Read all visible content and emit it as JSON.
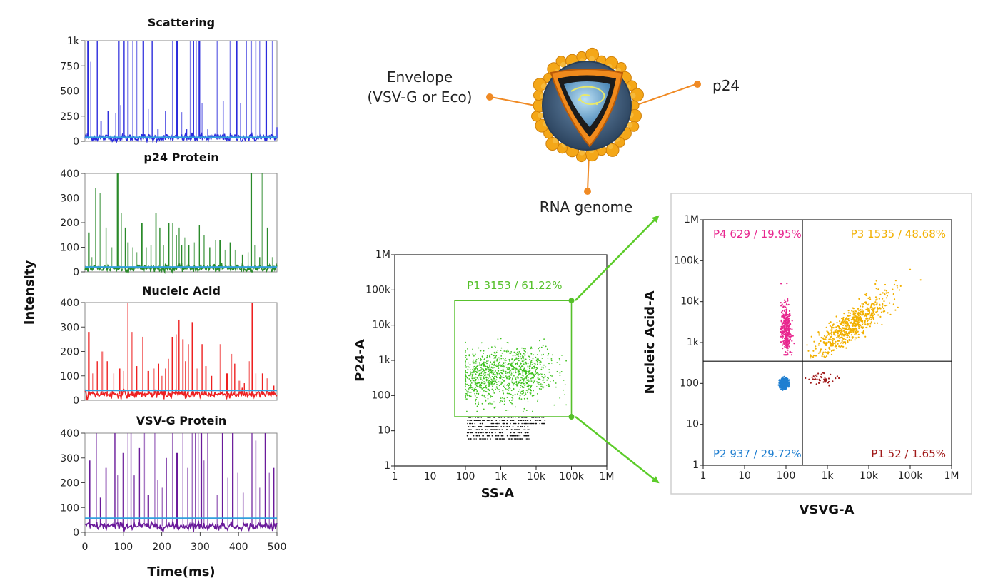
{
  "left_panel": {
    "y_axis_label": "Intensity",
    "x_axis_label": "Time(ms)",
    "x_ticks": [
      "0",
      "100",
      "200",
      "300",
      "400",
      "500"
    ]
  },
  "chart_data": [
    {
      "type": "line",
      "title": "Scattering",
      "xlabel": "Time(ms)",
      "ylabel": "Intensity",
      "xlim": [
        0,
        500
      ],
      "ylim": [
        0,
        1000
      ],
      "y_ticks": [
        "0",
        "250",
        "500",
        "750",
        "1k"
      ],
      "color": "#2b2bdc",
      "baseline": 35,
      "threshold": 40,
      "threshold_color": "#33a0dd",
      "spikes": [
        [
          8,
          1000
        ],
        [
          15,
          790
        ],
        [
          32,
          1000
        ],
        [
          42,
          200
        ],
        [
          60,
          300
        ],
        [
          80,
          280
        ],
        [
          88,
          1000
        ],
        [
          93,
          360
        ],
        [
          102,
          1000
        ],
        [
          112,
          1000
        ],
        [
          125,
          1000
        ],
        [
          135,
          1000
        ],
        [
          152,
          1000
        ],
        [
          165,
          320
        ],
        [
          175,
          1000
        ],
        [
          190,
          120
        ],
        [
          210,
          300
        ],
        [
          228,
          1000
        ],
        [
          240,
          1000
        ],
        [
          252,
          290
        ],
        [
          265,
          120
        ],
        [
          275,
          1000
        ],
        [
          283,
          1000
        ],
        [
          290,
          1000
        ],
        [
          298,
          1000
        ],
        [
          305,
          380
        ],
        [
          320,
          120
        ],
        [
          345,
          1000
        ],
        [
          360,
          400
        ],
        [
          378,
          1000
        ],
        [
          395,
          1000
        ],
        [
          405,
          380
        ],
        [
          420,
          1000
        ],
        [
          433,
          1000
        ],
        [
          445,
          1000
        ],
        [
          455,
          1000
        ],
        [
          472,
          1000
        ],
        [
          488,
          1000
        ],
        [
          500,
          140
        ]
      ]
    },
    {
      "type": "line",
      "title": "p24 Protein",
      "xlabel": "Time(ms)",
      "ylabel": "Intensity",
      "xlim": [
        0,
        500
      ],
      "ylim": [
        0,
        400
      ],
      "y_ticks": [
        "0",
        "100",
        "200",
        "300",
        "400"
      ],
      "color": "#2a8a2a",
      "baseline": 15,
      "threshold": 20,
      "threshold_color": "#33a0dd",
      "spikes": [
        [
          10,
          160
        ],
        [
          18,
          60
        ],
        [
          28,
          340
        ],
        [
          40,
          320
        ],
        [
          55,
          180
        ],
        [
          70,
          100
        ],
        [
          85,
          400
        ],
        [
          95,
          240
        ],
        [
          105,
          180
        ],
        [
          112,
          120
        ],
        [
          125,
          100
        ],
        [
          135,
          80
        ],
        [
          148,
          200
        ],
        [
          160,
          100
        ],
        [
          172,
          110
        ],
        [
          185,
          240
        ],
        [
          195,
          180
        ],
        [
          205,
          110
        ],
        [
          218,
          200
        ],
        [
          228,
          200
        ],
        [
          238,
          150
        ],
        [
          245,
          180
        ],
        [
          252,
          110
        ],
        [
          260,
          140
        ],
        [
          270,
          110
        ],
        [
          285,
          120
        ],
        [
          298,
          190
        ],
        [
          310,
          150
        ],
        [
          325,
          100
        ],
        [
          340,
          130
        ],
        [
          352,
          130
        ],
        [
          365,
          90
        ],
        [
          378,
          120
        ],
        [
          392,
          90
        ],
        [
          410,
          70
        ],
        [
          425,
          80
        ],
        [
          433,
          400
        ],
        [
          442,
          110
        ],
        [
          455,
          60
        ],
        [
          462,
          400
        ],
        [
          475,
          180
        ],
        [
          488,
          60
        ]
      ]
    },
    {
      "type": "line",
      "title": "Nucleic Acid",
      "xlabel": "Time(ms)",
      "ylabel": "Intensity",
      "xlim": [
        0,
        500
      ],
      "ylim": [
        0,
        400
      ],
      "y_ticks": [
        "0",
        "100",
        "200",
        "300",
        "400"
      ],
      "color": "#ee2020",
      "baseline": 25,
      "threshold": 40,
      "threshold_color": "#33a0dd",
      "spikes": [
        [
          10,
          280
        ],
        [
          20,
          110
        ],
        [
          32,
          160
        ],
        [
          45,
          200
        ],
        [
          58,
          160
        ],
        [
          75,
          110
        ],
        [
          90,
          130
        ],
        [
          100,
          120
        ],
        [
          112,
          400
        ],
        [
          122,
          280
        ],
        [
          135,
          140
        ],
        [
          150,
          260
        ],
        [
          165,
          120
        ],
        [
          180,
          130
        ],
        [
          192,
          150
        ],
        [
          200,
          100
        ],
        [
          210,
          130
        ],
        [
          218,
          170
        ],
        [
          228,
          260
        ],
        [
          238,
          270
        ],
        [
          245,
          330
        ],
        [
          255,
          250
        ],
        [
          262,
          160
        ],
        [
          270,
          230
        ],
        [
          280,
          320
        ],
        [
          292,
          130
        ],
        [
          305,
          230
        ],
        [
          315,
          140
        ],
        [
          330,
          100
        ],
        [
          352,
          230
        ],
        [
          370,
          110
        ],
        [
          382,
          190
        ],
        [
          390,
          150
        ],
        [
          402,
          80
        ],
        [
          415,
          70
        ],
        [
          428,
          160
        ],
        [
          436,
          400
        ],
        [
          445,
          110
        ],
        [
          462,
          110
        ],
        [
          475,
          90
        ],
        [
          492,
          60
        ]
      ]
    },
    {
      "type": "line",
      "title": "VSV-G Protein",
      "xlabel": "Time(ms)",
      "ylabel": "Intensity",
      "xlim": [
        0,
        500
      ],
      "ylim": [
        0,
        400
      ],
      "y_ticks": [
        "0",
        "100",
        "200",
        "300",
        "400"
      ],
      "color": "#6a1a9a",
      "baseline": 25,
      "threshold": 57,
      "threshold_color": "#33a0dd",
      "spikes": [
        [
          12,
          290
        ],
        [
          30,
          400
        ],
        [
          40,
          140
        ],
        [
          55,
          260
        ],
        [
          78,
          400
        ],
        [
          85,
          230
        ],
        [
          100,
          320
        ],
        [
          112,
          400
        ],
        [
          120,
          400
        ],
        [
          128,
          230
        ],
        [
          142,
          340
        ],
        [
          155,
          400
        ],
        [
          165,
          150
        ],
        [
          182,
          400
        ],
        [
          190,
          210
        ],
        [
          202,
          180
        ],
        [
          212,
          300
        ],
        [
          228,
          400
        ],
        [
          240,
          320
        ],
        [
          255,
          400
        ],
        [
          268,
          260
        ],
        [
          280,
          400
        ],
        [
          288,
          400
        ],
        [
          295,
          400
        ],
        [
          303,
          400
        ],
        [
          310,
          290
        ],
        [
          320,
          400
        ],
        [
          345,
          150
        ],
        [
          358,
          400
        ],
        [
          372,
          220
        ],
        [
          385,
          400
        ],
        [
          398,
          240
        ],
        [
          412,
          160
        ],
        [
          435,
          400
        ],
        [
          445,
          370
        ],
        [
          455,
          180
        ],
        [
          470,
          400
        ],
        [
          480,
          240
        ],
        [
          492,
          260
        ]
      ]
    },
    {
      "type": "scatter",
      "title": "",
      "xlabel": "SS-A",
      "ylabel": "P24-A",
      "scale": "log",
      "xlim": [
        1,
        1000000
      ],
      "ylim": [
        1,
        1000000
      ],
      "x_ticks": [
        "1",
        "10",
        "100",
        "1k",
        "10k",
        "100k",
        "1M"
      ],
      "y_ticks": [
        "1",
        "10",
        "100",
        "1k",
        "10k",
        "100k",
        "1M"
      ],
      "gate": {
        "label": "P1 3153 / 61.22%",
        "color": "#55c02a",
        "x_range": [
          50,
          100000
        ],
        "y_range": [
          25,
          50000
        ]
      },
      "populations": [
        {
          "name": "P1 gated",
          "color": "#3fc21f",
          "count": 1100
        },
        {
          "name": "below threshold",
          "color": "#111111",
          "count": 420
        }
      ]
    },
    {
      "type": "scatter",
      "title": "",
      "xlabel": "VSVG-A",
      "ylabel": "Nucleic Acid-A",
      "scale": "log",
      "xlim": [
        1,
        1000000
      ],
      "ylim": [
        1,
        1000000
      ],
      "x_ticks": [
        "1",
        "10",
        "100",
        "1k",
        "10k",
        "100k",
        "1M"
      ],
      "y_ticks": [
        "1",
        "10",
        "100",
        "1k",
        "10k",
        "100k",
        "1M"
      ],
      "quadrant_divider": {
        "x": 250,
        "y": 350
      },
      "quadrants": [
        {
          "label": "P4 629 / 19.95%",
          "color": "#e8278f",
          "pos": "top-left"
        },
        {
          "label": "P3 1535 / 48.68%",
          "color": "#f2b000",
          "pos": "top-right"
        },
        {
          "label": "P2 937 / 29.72%",
          "color": "#1f7fd1",
          "pos": "bottom-left"
        },
        {
          "label": "P1 52 / 1.65%",
          "color": "#a01818",
          "pos": "bottom-right"
        }
      ]
    }
  ],
  "diagram": {
    "labels": {
      "envelope_line1": "Envelope",
      "envelope_line2": "(VSV-G or Eco)",
      "p24": "p24",
      "rna": "RNA genome"
    },
    "colors": {
      "callout": "#f08a24",
      "gate_arrow": "#5ccc2a",
      "virus_spikes": "#f4a718",
      "virus_shell": "#3c5a7a",
      "capsid": "#f08a1c",
      "core": "#7fb8de"
    }
  }
}
